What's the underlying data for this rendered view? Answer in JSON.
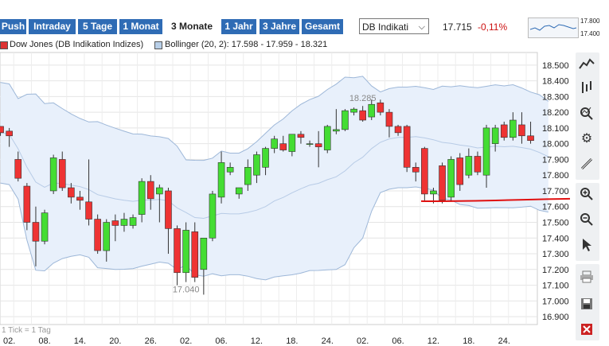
{
  "topbar": {
    "tabs": [
      {
        "label": "Push",
        "active": false
      },
      {
        "label": "Intraday",
        "active": false
      },
      {
        "label": "5 Tage",
        "active": false
      },
      {
        "label": "1 Monat",
        "active": false
      },
      {
        "label": "3 Monate",
        "active": true
      },
      {
        "label": "1 Jahr",
        "active": false
      },
      {
        "label": "3 Jahre",
        "active": false
      },
      {
        "label": "Gesamt",
        "active": false
      }
    ],
    "select_value": "DB Indikati",
    "price": "17.715",
    "change": "-0,11%",
    "change_color": "#cc1111",
    "mini_hi": "17.800",
    "mini_lo": "17.400"
  },
  "legend": {
    "series1": "Dow Jones (DB Indikation Indizes)",
    "series1_color": "#dd3333",
    "series2": "Bollinger (20, 2): 17.598 - 17.959 - 18.321",
    "series2_color": "#b8cfe8"
  },
  "toolbar": {
    "icons": [
      "line-chart-icon",
      "candlestick-icon",
      "indicator-icon",
      "gear-icon",
      "pencil-icon",
      "zoom-in-icon",
      "zoom-out-icon",
      "pointer-icon",
      "print-icon",
      "save-icon",
      "delete-icon"
    ]
  },
  "chart_data": {
    "type": "candlestick",
    "footnote": "1 Tick = 1 Tag",
    "ylim": [
      16.85,
      18.58
    ],
    "yticks": [
      "18.500",
      "18.400",
      "18.300",
      "18.200",
      "18.100",
      "18.000",
      "17.900",
      "17.800",
      "17.700",
      "17.600",
      "17.500",
      "17.400",
      "17.300",
      "17.200",
      "17.100",
      "17.000",
      "16.900"
    ],
    "xticks": [
      "02.",
      "08.",
      "14.",
      "20.",
      "26.",
      "02.",
      "06.",
      "12.",
      "18.",
      "24.",
      "02.",
      "06.",
      "12.",
      "18.",
      "24."
    ],
    "xtick_index": [
      1,
      5,
      9,
      13,
      17,
      21,
      25,
      29,
      33,
      37,
      41,
      45,
      49,
      53,
      57
    ],
    "annotations": [
      {
        "text": "18.285",
        "index": 41
      },
      {
        "text": "17.040",
        "index": 21
      }
    ],
    "support_line": 17.64,
    "candles": [
      [
        18.11,
        18.11,
        18.05,
        18.07
      ],
      [
        18.08,
        18.1,
        17.98,
        18.05
      ],
      [
        17.9,
        17.95,
        17.76,
        17.78
      ],
      [
        17.73,
        17.75,
        17.45,
        17.5
      ],
      [
        17.5,
        17.6,
        17.22,
        17.38
      ],
      [
        17.38,
        17.58,
        17.36,
        17.56
      ],
      [
        17.7,
        17.93,
        17.68,
        17.91
      ],
      [
        17.9,
        17.95,
        17.7,
        17.72
      ],
      [
        17.72,
        17.75,
        17.62,
        17.66
      ],
      [
        17.66,
        17.7,
        17.58,
        17.64
      ],
      [
        17.63,
        17.9,
        17.48,
        17.52
      ],
      [
        17.52,
        17.55,
        17.3,
        17.32
      ],
      [
        17.32,
        17.52,
        17.25,
        17.5
      ],
      [
        17.51,
        17.55,
        17.38,
        17.48
      ],
      [
        17.48,
        17.56,
        17.44,
        17.52
      ],
      [
        17.48,
        17.55,
        17.46,
        17.53
      ],
      [
        17.55,
        17.78,
        17.5,
        17.76
      ],
      [
        17.76,
        17.8,
        17.58,
        17.65
      ],
      [
        17.68,
        17.74,
        17.5,
        17.72
      ],
      [
        17.7,
        17.72,
        17.3,
        17.46
      ],
      [
        17.46,
        17.48,
        17.1,
        17.18
      ],
      [
        17.18,
        17.5,
        17.12,
        17.45
      ],
      [
        17.44,
        17.5,
        17.12,
        17.15
      ],
      [
        17.2,
        17.4,
        17.04,
        17.4
      ],
      [
        17.4,
        17.7,
        17.38,
        17.68
      ],
      [
        17.66,
        17.95,
        17.62,
        17.88
      ],
      [
        17.82,
        17.88,
        17.8,
        17.85
      ],
      [
        17.68,
        17.72,
        17.65,
        17.72
      ],
      [
        17.74,
        17.9,
        17.7,
        17.85
      ],
      [
        17.8,
        17.95,
        17.75,
        17.93
      ],
      [
        17.85,
        17.98,
        17.8,
        17.97
      ],
      [
        17.97,
        18.05,
        17.94,
        18.03
      ],
      [
        18.0,
        18.05,
        17.95,
        17.96
      ],
      [
        17.95,
        18.05,
        17.92,
        18.06
      ],
      [
        18.06,
        18.08,
        18.0,
        18.04
      ],
      [
        18.0,
        18.02,
        17.98,
        18.0
      ],
      [
        18.0,
        18.08,
        17.85,
        17.98
      ],
      [
        17.96,
        18.12,
        17.94,
        18.11
      ],
      [
        18.08,
        18.22,
        18.06,
        18.09
      ],
      [
        18.09,
        18.22,
        18.08,
        18.21
      ],
      [
        18.2,
        18.23,
        18.18,
        18.22
      ],
      [
        18.21,
        18.24,
        18.14,
        18.15
      ],
      [
        18.17,
        18.28,
        18.15,
        18.25
      ],
      [
        18.26,
        18.28,
        18.18,
        18.2
      ],
      [
        18.2,
        18.22,
        18.04,
        18.11
      ],
      [
        18.11,
        18.12,
        18.05,
        18.07
      ],
      [
        18.11,
        18.12,
        17.82,
        17.85
      ],
      [
        17.85,
        17.88,
        17.76,
        17.82
      ],
      [
        17.97,
        17.98,
        17.63,
        17.68
      ],
      [
        17.68,
        17.72,
        17.62,
        17.7
      ],
      [
        17.86,
        17.88,
        17.62,
        17.64
      ],
      [
        17.66,
        17.92,
        17.63,
        17.9
      ],
      [
        17.91,
        17.94,
        17.7,
        17.74
      ],
      [
        17.8,
        17.97,
        17.78,
        17.92
      ],
      [
        17.92,
        17.95,
        17.8,
        17.82
      ],
      [
        17.8,
        18.12,
        17.72,
        18.1
      ],
      [
        18.0,
        18.12,
        17.95,
        18.1
      ],
      [
        18.12,
        18.14,
        18.02,
        18.04
      ],
      [
        18.04,
        18.2,
        18.02,
        18.15
      ],
      [
        18.12,
        18.2,
        18.0,
        18.05
      ],
      [
        18.05,
        18.14,
        18.0,
        18.02
      ],
      [
        18.0,
        18.02,
        17.7,
        17.72
      ],
      [
        17.72,
        17.72,
        17.7,
        17.715
      ]
    ]
  }
}
